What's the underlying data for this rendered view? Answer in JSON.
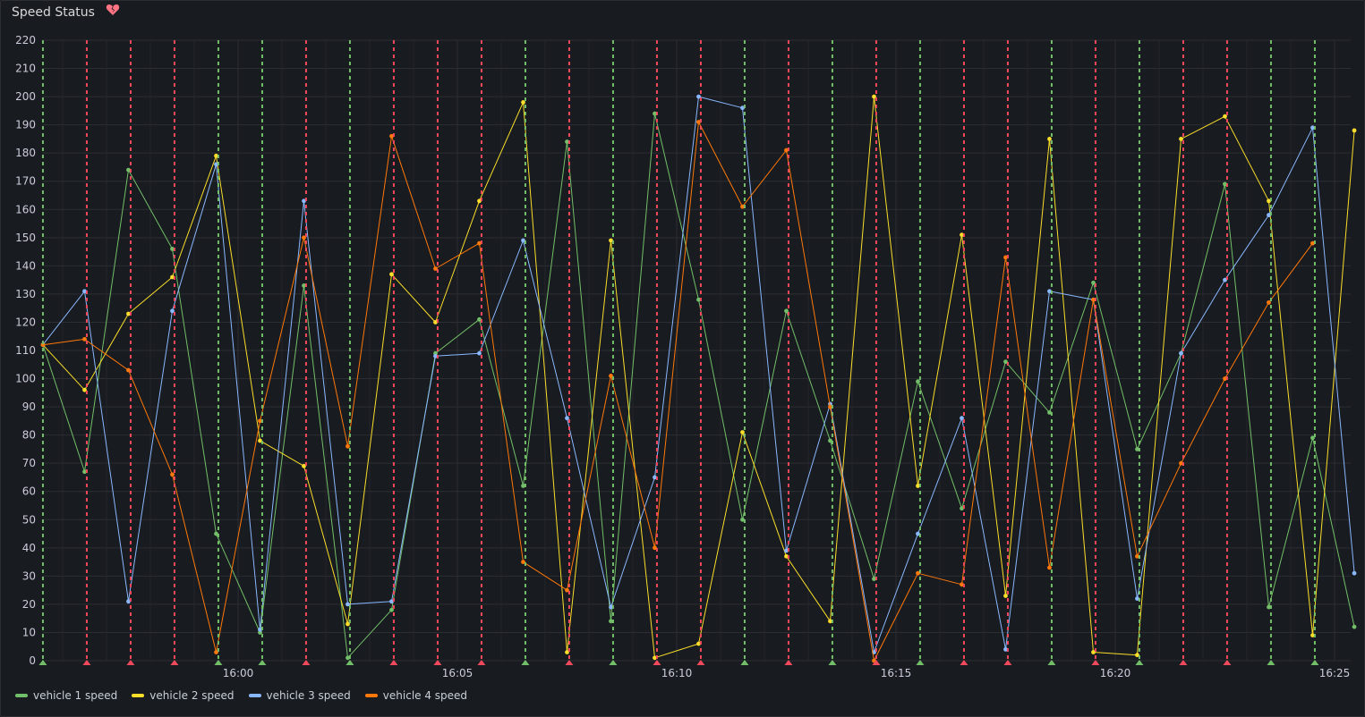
{
  "panel": {
    "title": "Speed Status",
    "health_icon": "broken-heart-icon"
  },
  "colors": {
    "v1": "#73bf69",
    "v2": "#fade2a",
    "v3": "#8ab8ff",
    "v4": "#ff780a",
    "ann_green": "#73bf69",
    "ann_red": "#f2495c",
    "grid": "#2c2e33",
    "text": "#ccccdc"
  },
  "chart_data": {
    "type": "line",
    "title": "Speed Status",
    "xlabel": "",
    "ylabel": "",
    "ylim": [
      0,
      220
    ],
    "y_ticks": [
      0,
      10,
      20,
      30,
      40,
      50,
      60,
      70,
      80,
      90,
      100,
      110,
      120,
      130,
      140,
      150,
      160,
      170,
      180,
      190,
      200,
      210,
      220
    ],
    "x_ticks": [
      "16:00",
      "16:05",
      "16:10",
      "16:15",
      "16:20",
      "16:25"
    ],
    "x_tick_minutes": [
      960,
      965,
      970,
      975,
      980,
      985
    ],
    "xlim_minutes": [
      955.55,
      985.2
    ],
    "annotations": [
      {
        "t": 955.55,
        "color": "green"
      },
      {
        "t": 956.55,
        "color": "red"
      },
      {
        "t": 957.55,
        "color": "red"
      },
      {
        "t": 958.55,
        "color": "red"
      },
      {
        "t": 959.55,
        "color": "green"
      },
      {
        "t": 960.55,
        "color": "green"
      },
      {
        "t": 961.55,
        "color": "red"
      },
      {
        "t": 962.55,
        "color": "green"
      },
      {
        "t": 963.55,
        "color": "red"
      },
      {
        "t": 964.55,
        "color": "red"
      },
      {
        "t": 965.55,
        "color": "red"
      },
      {
        "t": 966.55,
        "color": "green"
      },
      {
        "t": 967.55,
        "color": "red"
      },
      {
        "t": 968.55,
        "color": "green"
      },
      {
        "t": 969.55,
        "color": "red"
      },
      {
        "t": 970.55,
        "color": "red"
      },
      {
        "t": 971.55,
        "color": "green"
      },
      {
        "t": 972.55,
        "color": "red"
      },
      {
        "t": 973.55,
        "color": "green"
      },
      {
        "t": 974.55,
        "color": "red"
      },
      {
        "t": 975.55,
        "color": "green"
      },
      {
        "t": 976.55,
        "color": "red"
      },
      {
        "t": 977.55,
        "color": "red"
      },
      {
        "t": 978.55,
        "color": "green"
      },
      {
        "t": 979.55,
        "color": "red"
      },
      {
        "t": 980.55,
        "color": "green"
      },
      {
        "t": 981.55,
        "color": "red"
      },
      {
        "t": 982.55,
        "color": "red"
      },
      {
        "t": 983.55,
        "color": "green"
      },
      {
        "t": 984.55,
        "color": "green"
      }
    ],
    "x_minutes": [
      955.55,
      956.5,
      957.5,
      958.5,
      959.5,
      960.5,
      961.5,
      962.5,
      963.5,
      964.5,
      965.5,
      966.5,
      967.5,
      968.5,
      969.5,
      970.5,
      971.5,
      972.5,
      973.5,
      974.5,
      975.5,
      976.5,
      977.5,
      978.5,
      979.5,
      980.5,
      981.5,
      982.5,
      983.5,
      984.5,
      985.45
    ],
    "series": [
      {
        "name": "vehicle 1 speed",
        "color": "#73bf69",
        "values": [
          112,
          67,
          174,
          146,
          45,
          10,
          133,
          1,
          18,
          109,
          121,
          62,
          184,
          14,
          194,
          128,
          50,
          124,
          78,
          29,
          99,
          54,
          106,
          88,
          134,
          75,
          109,
          169,
          19,
          79,
          12
        ]
      },
      {
        "name": "vehicle 2 speed",
        "color": "#fade2a",
        "values": [
          112,
          96,
          123,
          136,
          179,
          78,
          69,
          13,
          137,
          120,
          163,
          198,
          3,
          149,
          1,
          6,
          81,
          37,
          14,
          200,
          62,
          151,
          23,
          185,
          3,
          2,
          185,
          193,
          163,
          9,
          188
        ]
      },
      {
        "name": "vehicle 3 speed",
        "color": "#8ab8ff",
        "values": [
          112,
          131,
          21,
          124,
          176,
          11,
          163,
          20,
          21,
          108,
          109,
          149,
          86,
          19,
          65,
          200,
          196,
          39,
          91,
          3,
          45,
          86,
          4,
          131,
          128,
          22,
          109,
          135,
          158,
          189,
          31
        ]
      },
      {
        "name": "vehicle 4 speed",
        "color": "#ff780a",
        "values": [
          112,
          114,
          103,
          66,
          3,
          85,
          150,
          76,
          186,
          139,
          148,
          35,
          25,
          101,
          40,
          191,
          161,
          181,
          90,
          0,
          31,
          27,
          143,
          33,
          128,
          37,
          70,
          100,
          127,
          148,
          null
        ]
      }
    ]
  }
}
